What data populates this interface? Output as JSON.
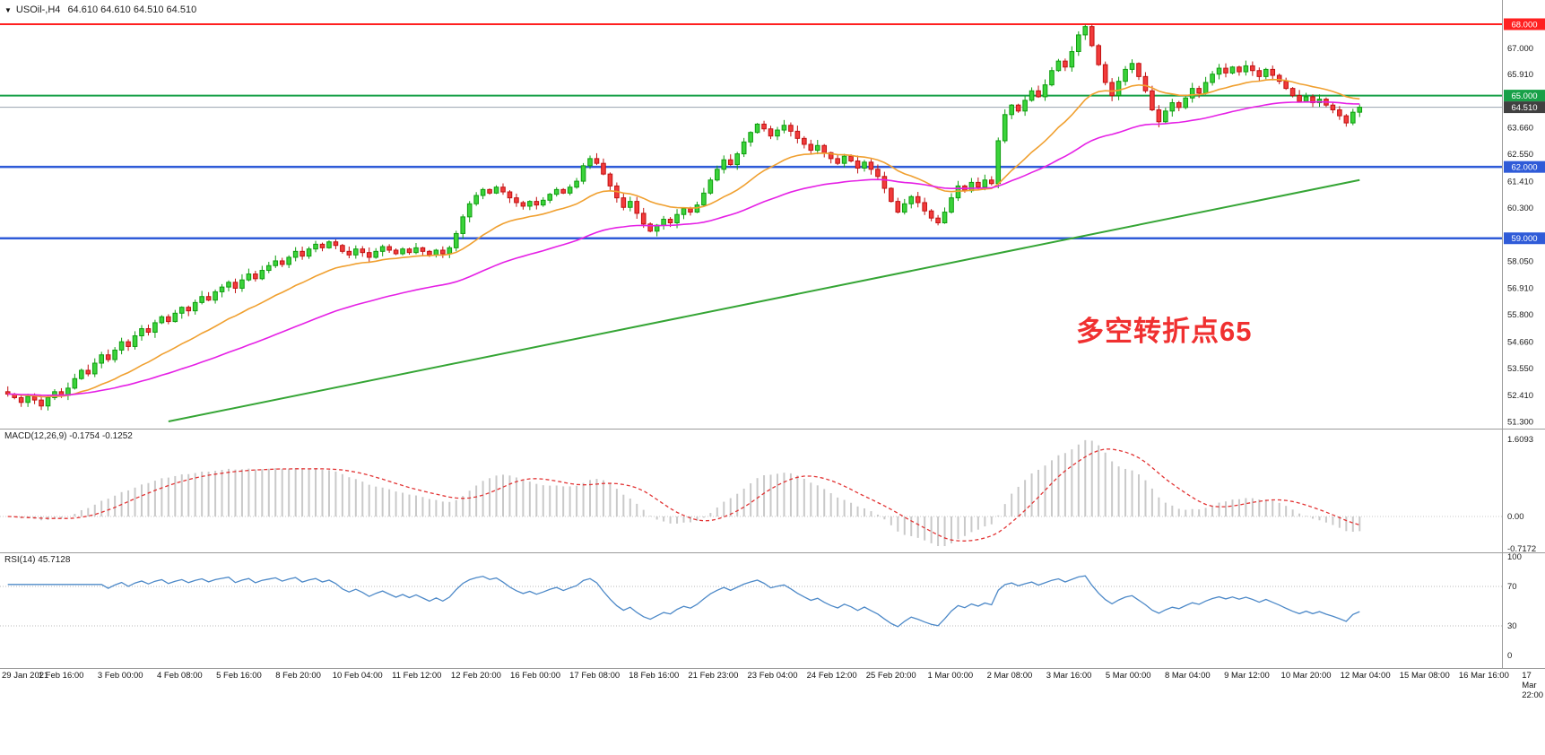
{
  "symbol_bar": {
    "icon": "▼",
    "title": "USOil-,H4",
    "ohlc": "64.610 64.610 64.510 64.510"
  },
  "chart_data": {
    "type": "candlestick",
    "symbol": "USOil-",
    "timeframe": "H4",
    "ohlc_line": {
      "open": "64.610",
      "high": "64.610",
      "low": "64.510",
      "close": "64.510"
    },
    "y_range": [
      51.3,
      68.0
    ],
    "open_first": 52.55,
    "closes": [
      52.45,
      52.3,
      52.1,
      52.35,
      52.2,
      51.95,
      52.3,
      52.55,
      52.4,
      52.7,
      53.1,
      53.45,
      53.3,
      53.75,
      54.1,
      53.9,
      54.3,
      54.65,
      54.45,
      54.9,
      55.2,
      55.05,
      55.45,
      55.7,
      55.5,
      55.85,
      56.1,
      55.95,
      56.3,
      56.55,
      56.4,
      56.75,
      56.95,
      57.15,
      56.9,
      57.25,
      57.5,
      57.3,
      57.65,
      57.85,
      58.05,
      57.9,
      58.2,
      58.45,
      58.25,
      58.55,
      58.75,
      58.6,
      58.85,
      58.7,
      58.45,
      58.3,
      58.55,
      58.4,
      58.2,
      58.45,
      58.65,
      58.5,
      58.35,
      58.55,
      58.4,
      58.6,
      58.45,
      58.3,
      58.5,
      58.35,
      58.6,
      59.2,
      59.9,
      60.45,
      60.8,
      61.05,
      60.9,
      61.15,
      60.95,
      60.7,
      60.5,
      60.35,
      60.55,
      60.4,
      60.6,
      60.85,
      61.05,
      60.9,
      61.15,
      61.4,
      62.05,
      62.35,
      62.15,
      61.7,
      61.2,
      60.7,
      60.3,
      60.55,
      60.05,
      59.6,
      59.3,
      59.55,
      59.8,
      59.65,
      60.0,
      60.25,
      60.1,
      60.4,
      60.9,
      61.45,
      61.9,
      62.3,
      62.1,
      62.55,
      63.05,
      63.45,
      63.8,
      63.6,
      63.3,
      63.55,
      63.75,
      63.5,
      63.2,
      62.95,
      62.7,
      62.9,
      62.6,
      62.35,
      62.15,
      62.45,
      62.25,
      61.95,
      62.2,
      61.9,
      61.6,
      61.1,
      60.55,
      60.1,
      60.45,
      60.75,
      60.5,
      60.15,
      59.85,
      59.65,
      60.1,
      60.7,
      61.2,
      61.0,
      61.35,
      61.15,
      61.45,
      61.3,
      63.1,
      64.2,
      64.6,
      64.35,
      64.8,
      65.2,
      64.95,
      65.45,
      66.05,
      66.45,
      66.2,
      66.85,
      67.55,
      67.9,
      67.1,
      66.3,
      65.55,
      65.0,
      65.6,
      66.1,
      66.35,
      65.8,
      65.2,
      64.4,
      63.9,
      64.35,
      64.7,
      64.5,
      64.9,
      65.3,
      65.1,
      65.55,
      65.9,
      66.15,
      65.95,
      66.2,
      66.0,
      66.25,
      66.05,
      65.8,
      66.1,
      65.85,
      65.6,
      65.3,
      65.0,
      64.75,
      64.95,
      64.7,
      64.85,
      64.6,
      64.4,
      64.15,
      63.85,
      64.3,
      64.51
    ],
    "time_labels": [
      "29 Jan 2021",
      "1 Feb 16:00",
      "3 Feb 00:00",
      "4 Feb 08:00",
      "5 Feb 16:00",
      "8 Feb 20:00",
      "10 Feb 04:00",
      "11 Feb 12:00",
      "12 Feb 20:00",
      "16 Feb 00:00",
      "17 Feb 08:00",
      "18 Feb 16:00",
      "21 Feb 23:00",
      "23 Feb 04:00",
      "24 Feb 12:00",
      "25 Feb 20:00",
      "1 Mar 00:00",
      "2 Mar 08:00",
      "3 Mar 16:00",
      "5 Mar 00:00",
      "8 Mar 04:00",
      "9 Mar 12:00",
      "10 Mar 20:00",
      "12 Mar 04:00",
      "15 Mar 08:00",
      "16 Mar 16:00",
      "17 Mar 22:00"
    ],
    "price_axis_labels": [
      {
        "text": "68.000",
        "price": 68.0,
        "bg": "#ff2020"
      },
      {
        "text": "67.000",
        "price": 67.0
      },
      {
        "text": "65.910",
        "price": 65.91
      },
      {
        "text": "65.000",
        "price": 65.0,
        "bg": "#18a048"
      },
      {
        "text": "64.510",
        "price": 64.51,
        "bg": "#404040"
      },
      {
        "text": "63.660",
        "price": 63.66
      },
      {
        "text": "62.550",
        "price": 62.55
      },
      {
        "text": "62.000",
        "price": 62.0,
        "bg": "#2f5bd8"
      },
      {
        "text": "61.410",
        "price": 61.41
      },
      {
        "text": "60.300",
        "price": 60.3
      },
      {
        "text": "59.000",
        "price": 59.0,
        "bg": "#2f5bd8"
      },
      {
        "text": "58.050",
        "price": 58.05
      },
      {
        "text": "56.910",
        "price": 56.91
      },
      {
        "text": "55.800",
        "price": 55.8
      },
      {
        "text": "54.660",
        "price": 54.66
      },
      {
        "text": "53.550",
        "price": 53.55
      },
      {
        "text": "52.410",
        "price": 52.41
      },
      {
        "text": "51.300",
        "price": 51.3
      }
    ],
    "levels": [
      {
        "name": "resistance-68",
        "price": 68.0,
        "color": "#ff2020",
        "width": 2
      },
      {
        "name": "pivot-65",
        "price": 65.0,
        "color": "#18a048",
        "width": 2
      },
      {
        "name": "current-price",
        "price": 64.51,
        "color": "#98a2ae",
        "width": 1
      },
      {
        "name": "support-62",
        "price": 62.0,
        "color": "#2f5bd8",
        "width": 2.5
      },
      {
        "name": "support-59",
        "price": 59.0,
        "color": "#2f5bd8",
        "width": 2.5
      }
    ],
    "trendline": {
      "from_index": 24,
      "from_price": 51.3,
      "to_index": 202,
      "to_price": 61.45,
      "color": "#35a535",
      "width": 2
    },
    "moving_averages": [
      {
        "name": "fast",
        "period": 20,
        "color": "#f0a030"
      },
      {
        "name": "slow",
        "period": 55,
        "color": "#e520e5"
      }
    ],
    "annotation": {
      "text": "多空转折点65",
      "color": "#f03030"
    },
    "colors": {
      "up": "#3bd33b",
      "up_border": "#0f9d0f",
      "down": "#f23b3b",
      "down_border": "#c11212"
    },
    "macd": {
      "label": "MACD(12,26,9) -0.1754 -0.1252",
      "fast": 12,
      "slow": 26,
      "signal": 9,
      "main_value": -0.1754,
      "signal_value": -0.1252,
      "axis_labels": [
        {
          "text": "1.6093",
          "value": 1.6093
        },
        {
          "text": "0.00",
          "value": 0
        },
        {
          "text": "-0.7172",
          "value": -0.7172
        }
      ],
      "histogram_color": "#c9c9c9",
      "signal_color": "#e23333"
    },
    "rsi": {
      "label": "RSI(14) 45.7128",
      "period": 14,
      "value": 45.7128,
      "axis_labels": [
        {
          "text": "100",
          "value": 100
        },
        {
          "text": "70",
          "value": 70
        },
        {
          "text": "30",
          "value": 30
        },
        {
          "text": "0",
          "value": 0
        }
      ],
      "levels": [
        70,
        30
      ],
      "line_color": "#4d89c8"
    }
  }
}
